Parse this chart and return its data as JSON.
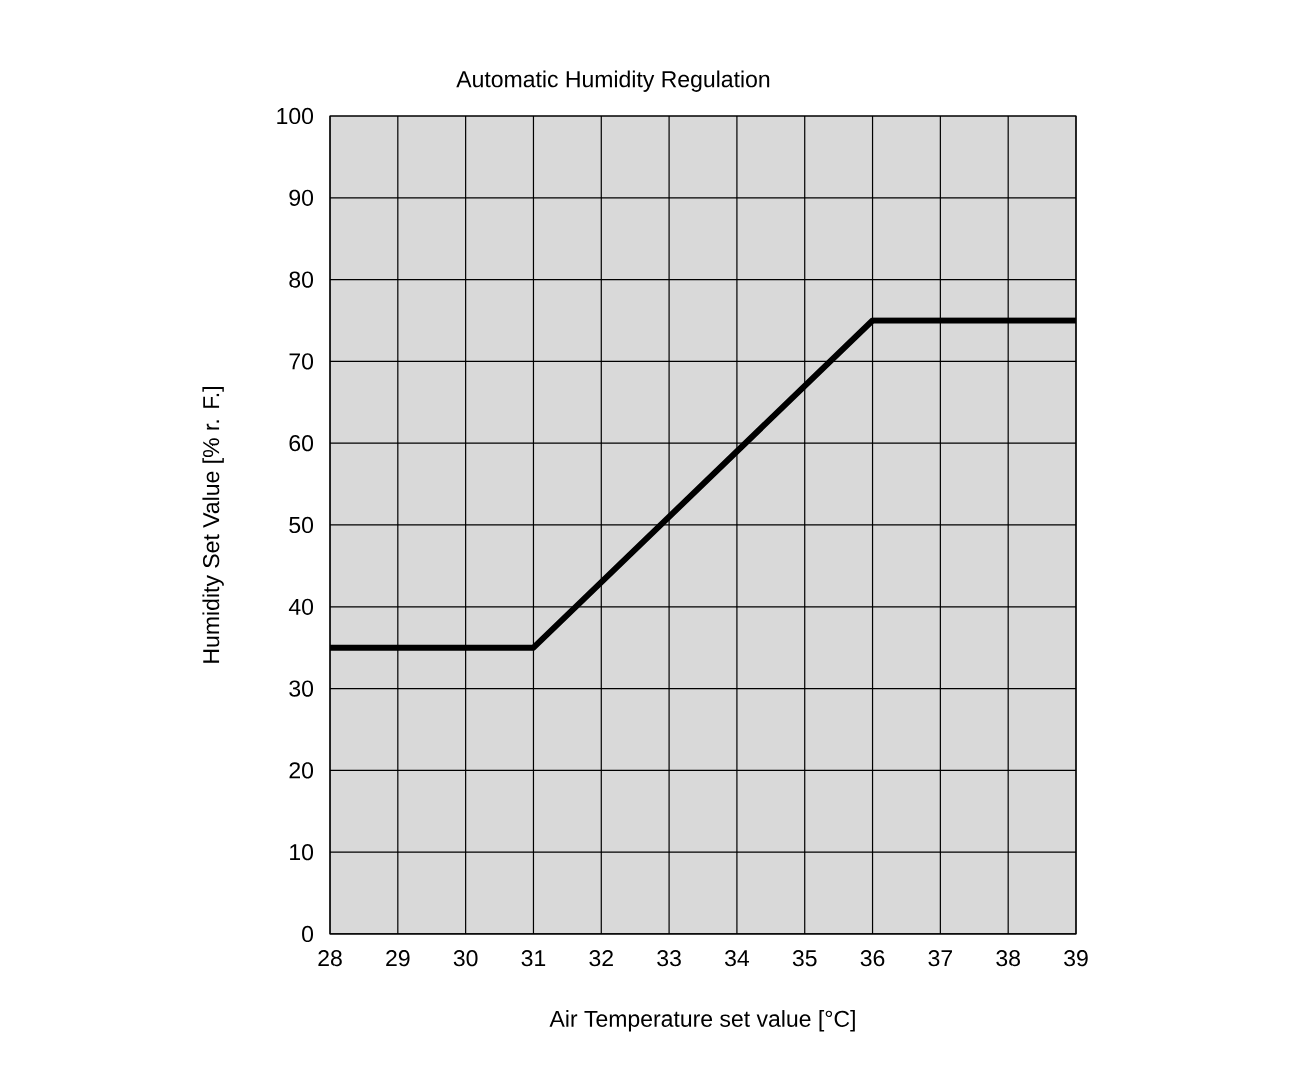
{
  "chart_data": {
    "type": "line",
    "title": "Automatic Humidity Regulation",
    "xlabel": "Air Temperature set value    [°C]",
    "ylabel": "Humidity Set Value  [% r. F.]",
    "x": [
      28,
      31,
      36,
      39
    ],
    "series": [
      {
        "color": "#000000",
        "values": [
          35,
          35,
          75,
          75
        ]
      }
    ],
    "xlim": [
      28,
      39
    ],
    "xticks": [
      28,
      29,
      30,
      31,
      32,
      33,
      34,
      35,
      36,
      37,
      38,
      39
    ],
    "ylim": [
      0,
      100
    ],
    "yticks": [
      0,
      10,
      20,
      30,
      40,
      50,
      60,
      70,
      80,
      90,
      100
    ],
    "grid": true,
    "marker": "none",
    "line_style": "solid"
  }
}
